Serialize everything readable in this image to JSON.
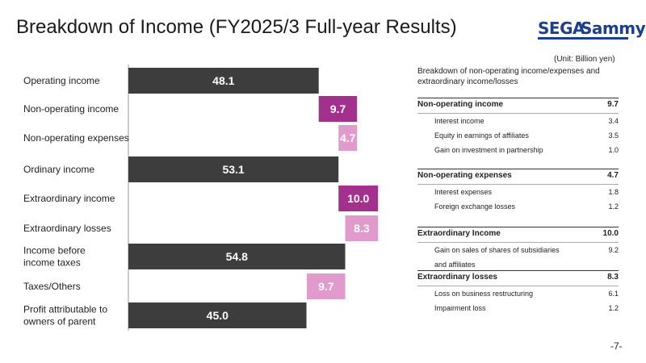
{
  "title": "Breakdown of Income (FY2025/3 Full-year Results)",
  "logo": {
    "sega": "SEGA",
    "sammy": "Sammy"
  },
  "unit": "(Unit: Billion yen)",
  "colors": {
    "total": "#3d3d3d",
    "increase": "#a3308c",
    "decrease": "#e09acb"
  },
  "chart_data": {
    "type": "bar",
    "orientation": "horizontal-waterfall",
    "categories": [
      "Operating income",
      "Non-operating income",
      "Non-operating expenses",
      "Ordinary income",
      "Extraordinary income",
      "Extraordinary losses",
      "Income before\nincome taxes",
      "Taxes/Others",
      "Profit attributable to\nowners of parent"
    ],
    "labels": [
      [
        "Operating income"
      ],
      [
        "Non-operating income"
      ],
      [
        "Non-operating expenses"
      ],
      [
        "Ordinary income"
      ],
      [
        "Extraordinary income"
      ],
      [
        "Extraordinary losses"
      ],
      [
        "Income before",
        "income taxes"
      ],
      [
        "Taxes/Others"
      ],
      [
        "Profit attributable to",
        "owners of parent"
      ]
    ],
    "values": [
      48.1,
      9.7,
      4.7,
      53.1,
      10.0,
      8.3,
      54.8,
      9.7,
      45.0
    ],
    "value_labels": [
      "48.1",
      "9.7",
      "4.7",
      "53.1",
      "10.0",
      "8.3",
      "54.8",
      "9.7",
      "45.0"
    ],
    "kinds": [
      "total",
      "increase",
      "decrease",
      "total",
      "increase",
      "decrease",
      "total",
      "decrease",
      "total"
    ],
    "title": "",
    "xlabel": "",
    "ylabel": "",
    "xlim": [
      0,
      62
    ],
    "grid": false,
    "legend": "none"
  },
  "table": {
    "heading_line1": "Breakdown of non-operating income/expenses and",
    "heading_line2": "extraordinary income/losses",
    "groups": [
      {
        "label": "Non-operating income",
        "value": "9.7",
        "items": [
          {
            "label": "Interest income",
            "value": "3.4"
          },
          {
            "label": "Equity in earnings of affiliates",
            "value": "3.5"
          },
          {
            "label": "Gain on investment in partnership",
            "value": "1.0"
          }
        ]
      },
      {
        "label": "Non-operating expenses",
        "value": "4.7",
        "items": [
          {
            "label": "Interest expenses",
            "value": "1.8"
          },
          {
            "label": "Foreign exchange losses",
            "value": "1.2"
          }
        ]
      },
      {
        "label": "Extraordinary Income",
        "value": "10.0",
        "items": [
          {
            "label": "Gain on sales of shares of subsidiaries",
            "label2": "and affiliates",
            "value": "9.2"
          }
        ]
      },
      {
        "label": "Extraordinary losses",
        "value": "8.3",
        "items": [
          {
            "label": "Loss on business restructuring",
            "value": "6.1"
          },
          {
            "label": "Impairment loss",
            "value": "1.2"
          }
        ]
      }
    ]
  },
  "page_number": "-7-"
}
